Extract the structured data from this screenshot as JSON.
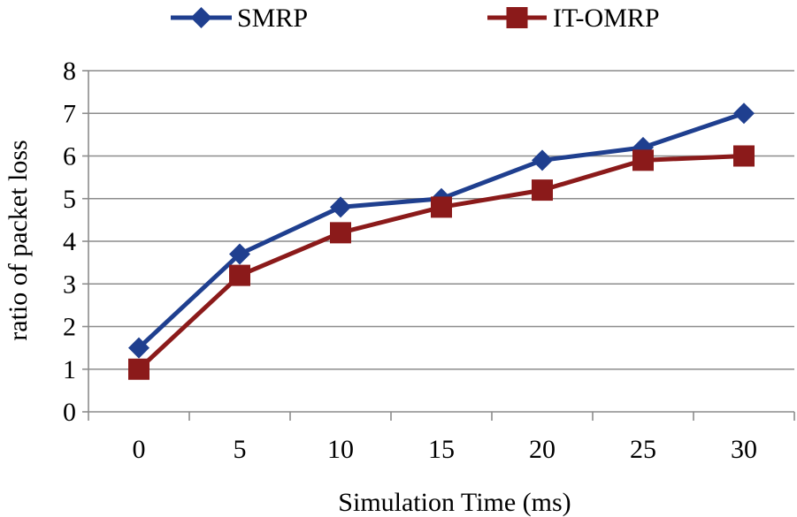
{
  "chart_data": {
    "type": "line",
    "title": "",
    "xlabel": "Simulation Time (ms)",
    "ylabel": "ratio of packet loss",
    "categories": [
      "0",
      "5",
      "10",
      "15",
      "20",
      "25",
      "30"
    ],
    "ylim": [
      0,
      8
    ],
    "yticks": [
      "0",
      "1",
      "2",
      "3",
      "4",
      "5",
      "6",
      "7",
      "8"
    ],
    "grid": "horizontal",
    "legend_position": "top",
    "series": [
      {
        "name": "SMRP",
        "values": [
          1.5,
          3.7,
          4.8,
          5.0,
          5.9,
          6.2,
          7.0
        ],
        "color": "#1f3f8f",
        "marker": "diamond"
      },
      {
        "name": "IT-OMRP",
        "values": [
          1.0,
          3.2,
          4.2,
          4.8,
          5.2,
          5.9,
          6.0
        ],
        "color": "#8b1a1a",
        "marker": "square"
      }
    ]
  }
}
